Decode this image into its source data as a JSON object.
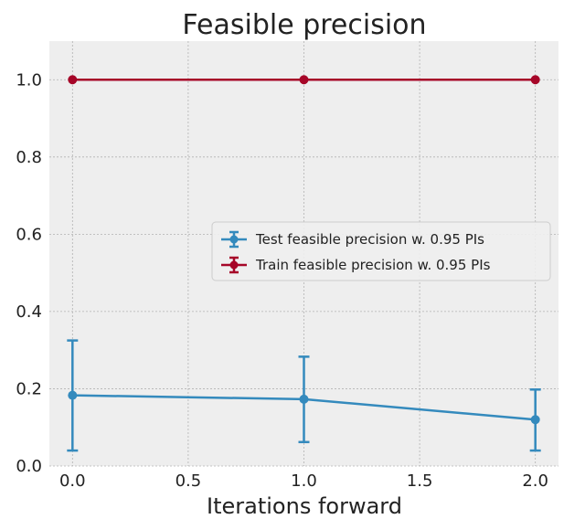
{
  "chart_data": {
    "type": "line",
    "title": "Feasible precision",
    "xlabel": "Iterations forward",
    "ylabel": "",
    "xlim": [
      -0.1,
      2.1
    ],
    "ylim": [
      0.0,
      1.1
    ],
    "x_ticks": [
      0.0,
      0.5,
      1.0,
      1.5,
      2.0
    ],
    "x_tick_labels": [
      "0.0",
      "0.5",
      "1.0",
      "1.5",
      "2.0"
    ],
    "y_ticks": [
      0.0,
      0.2,
      0.4,
      0.6,
      0.8,
      1.0
    ],
    "y_tick_labels": [
      "0.0",
      "0.2",
      "0.4",
      "0.6",
      "0.8",
      "1.0"
    ],
    "grid": true,
    "legend_position": "center-right",
    "series": [
      {
        "name": "Test feasible precision w. 0.95 PIs",
        "color": "#348abd",
        "x": [
          0,
          1,
          2
        ],
        "y": [
          0.183,
          0.173,
          0.12
        ],
        "err_low": [
          0.04,
          0.062,
          0.04
        ],
        "err_high": [
          0.325,
          0.283,
          0.198
        ]
      },
      {
        "name": "Train feasible precision w. 0.95 PIs",
        "color": "#a60628",
        "x": [
          0,
          1,
          2
        ],
        "y": [
          1.0,
          1.0,
          1.0
        ],
        "err_low": [
          1.0,
          1.0,
          1.0
        ],
        "err_high": [
          1.0,
          1.0,
          1.0
        ]
      }
    ]
  }
}
